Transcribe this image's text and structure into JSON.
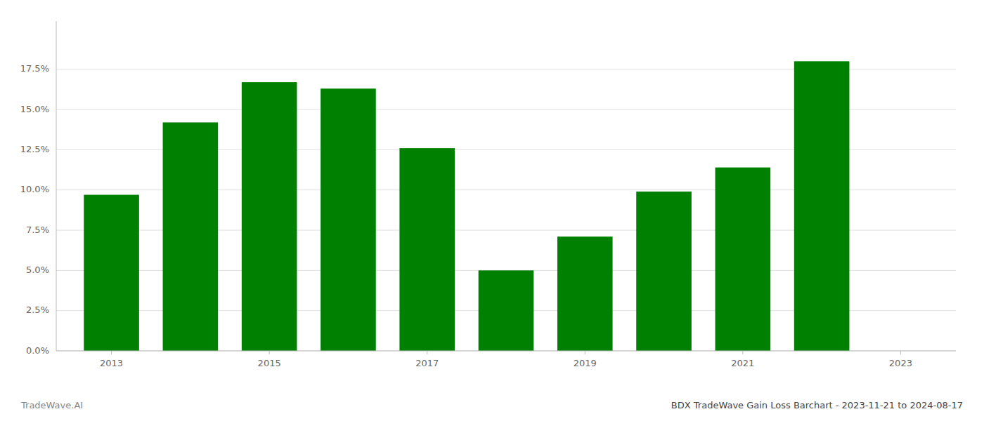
{
  "chart_data": {
    "type": "bar",
    "title": "BDX TradeWave Gain Loss Barchart - 2023-11-21 to 2024-08-17",
    "annotations": [
      "TradeWave.AI"
    ],
    "x": [
      2013,
      2014,
      2015,
      2016,
      2017,
      2018,
      2019,
      2020,
      2021,
      2022
    ],
    "values": [
      0.097,
      0.142,
      0.167,
      0.163,
      0.126,
      0.05,
      0.071,
      0.099,
      0.114,
      0.18
    ],
    "color": "#008000",
    "xlim": [
      2012.3,
      2023.7
    ],
    "xticks": [
      2013,
      2015,
      2017,
      2019,
      2021,
      2023
    ],
    "ylim": [
      0,
      0.205
    ],
    "yticks": [
      {
        "value": 0.0,
        "label": "0.0%"
      },
      {
        "value": 0.025,
        "label": "2.5%"
      },
      {
        "value": 0.05,
        "label": "5.0%"
      },
      {
        "value": 0.075,
        "label": "7.5%"
      },
      {
        "value": 0.1,
        "label": "10.0%"
      },
      {
        "value": 0.125,
        "label": "12.5%"
      },
      {
        "value": 0.15,
        "label": "15.0%"
      },
      {
        "value": 0.175,
        "label": "17.5%"
      }
    ],
    "grid": true
  }
}
